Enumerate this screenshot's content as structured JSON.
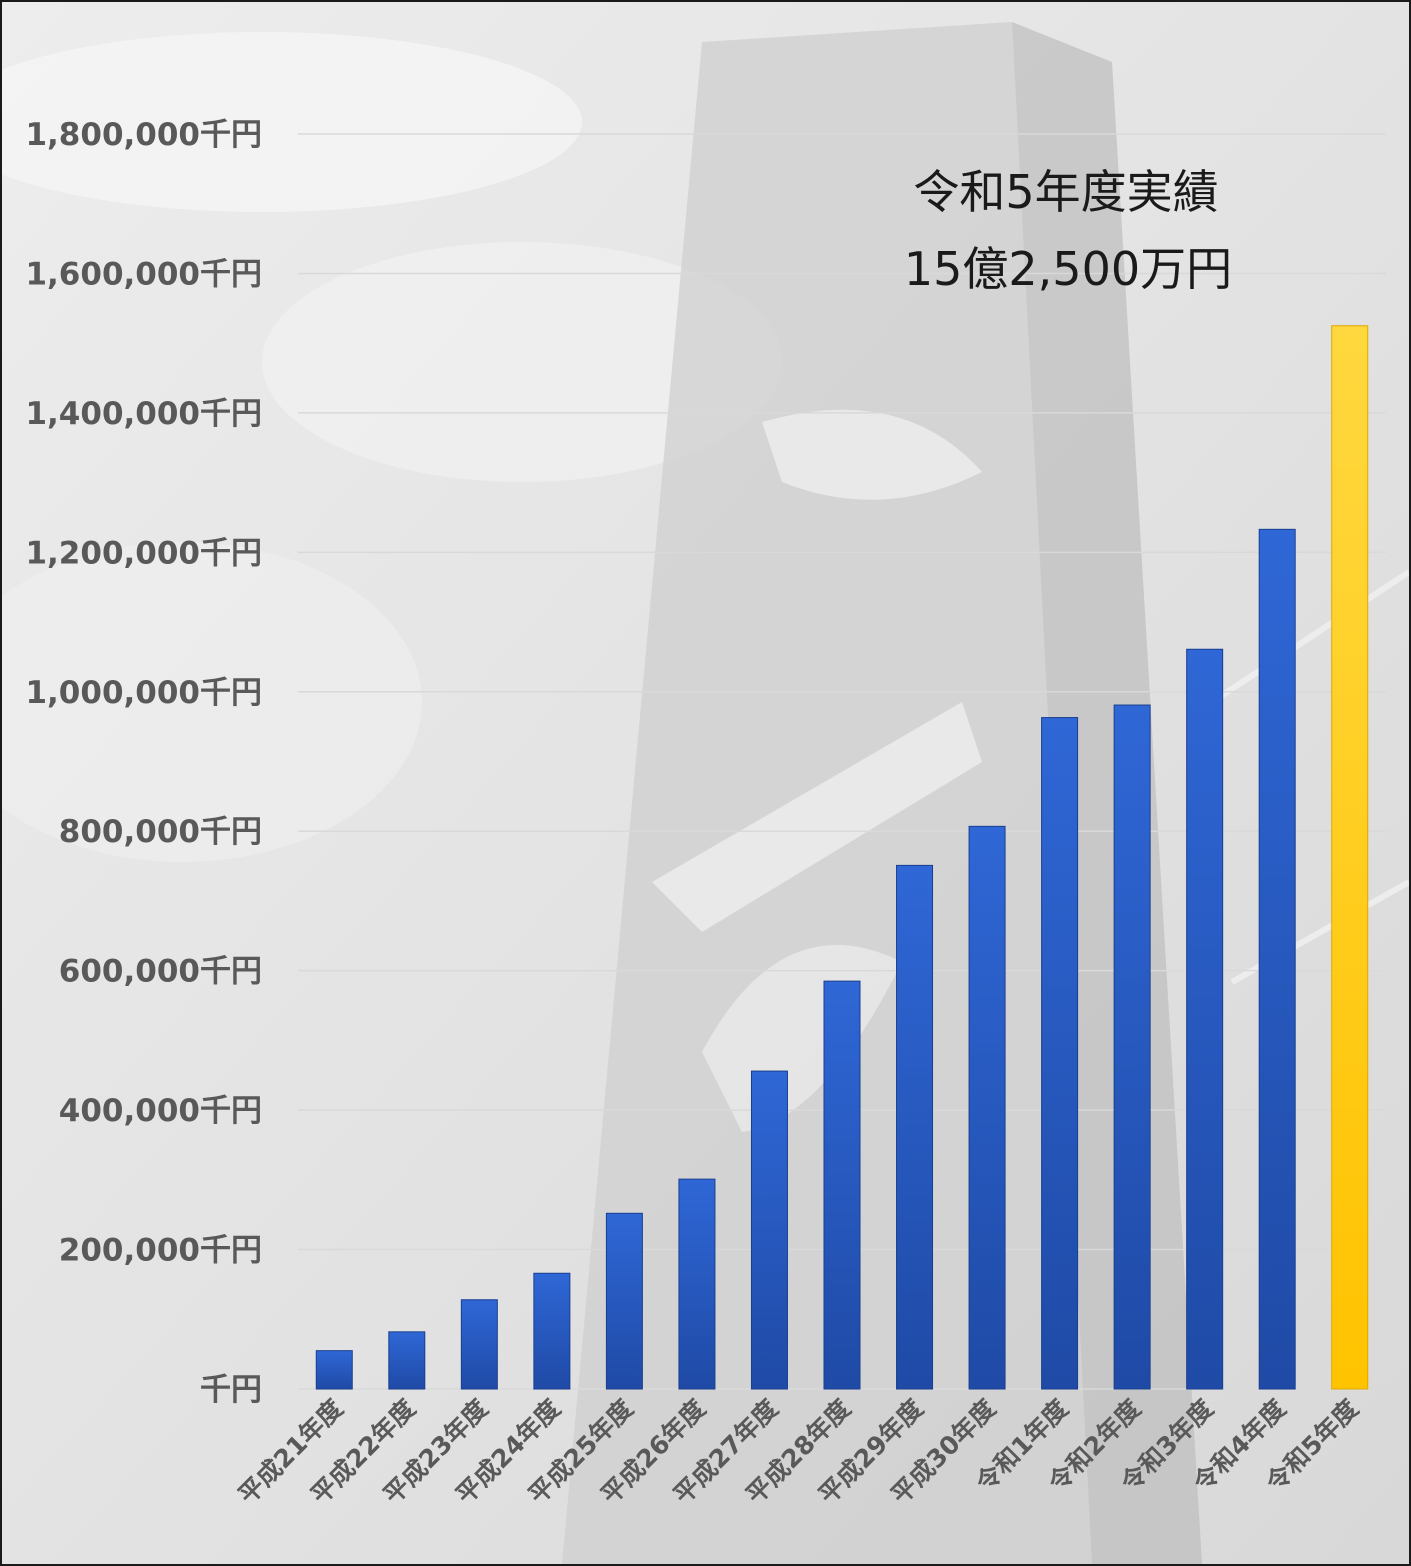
{
  "chart_data": {
    "type": "bar",
    "title": "",
    "xlabel": "",
    "ylabel": "",
    "ylim": [
      0,
      1800000
    ],
    "ytick_step": 200000,
    "y_unit_suffix": "千円",
    "grid": true,
    "legend": "none",
    "categories": [
      "平成21年度",
      "平成22年度",
      "平成23年度",
      "平成24年度",
      "平成25年度",
      "平成26年度",
      "平成27年度",
      "平成28年度",
      "平成29年度",
      "平成30年度",
      "令和1年度",
      "令和2年度",
      "令和3年度",
      "令和4年度",
      "令和5年度"
    ],
    "values": [
      55000,
      82000,
      128000,
      166000,
      252000,
      301000,
      456000,
      585000,
      751000,
      807000,
      963000,
      981000,
      1061000,
      1233000,
      1525000
    ],
    "colors": {
      "default_bar": "#2a5bc4",
      "highlight_bar": "#ffc81a",
      "gridline": "#d9d9d9",
      "tick_text": "#595959"
    },
    "highlight_index": 14,
    "annotation": {
      "line1": "令和5年度実績",
      "line2": "15億2,500万円"
    }
  }
}
